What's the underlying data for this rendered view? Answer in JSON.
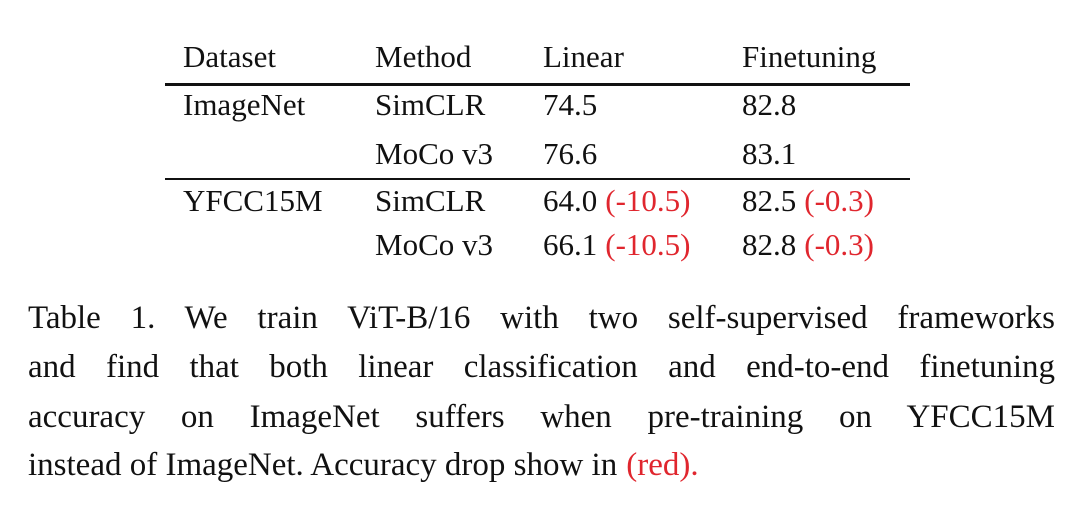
{
  "table": {
    "header": [
      "Dataset",
      "Method",
      "Linear",
      "Finetuning"
    ],
    "rows": [
      [
        "ImageNet",
        "SimCLR",
        "74.5",
        "82.8"
      ],
      [
        null,
        "MoCo v3",
        "76.6",
        "83.1"
      ],
      [
        "YFCC15M",
        "SimCLR",
        {
          "value": "64.0",
          "drop": "(-10.5)"
        },
        {
          "value": "82.5",
          "drop": "(-0.3)"
        }
      ],
      [
        null,
        "MoCo v3",
        {
          "value": "66.1",
          "drop": "(-10.5)"
        },
        {
          "value": "82.8",
          "drop": "(-0.3)"
        }
      ]
    ]
  },
  "caption": {
    "lines": [
      "Table 1. We train ViT-B/16 with two self-supervised frameworks",
      "and find that both linear classification and end-to-end finetuning",
      "accuracy on ImageNet suffers when pre-training on YFCC15M",
      "instead of ImageNet. Accuracy drop show in"
    ],
    "highlight": "(red)."
  }
}
